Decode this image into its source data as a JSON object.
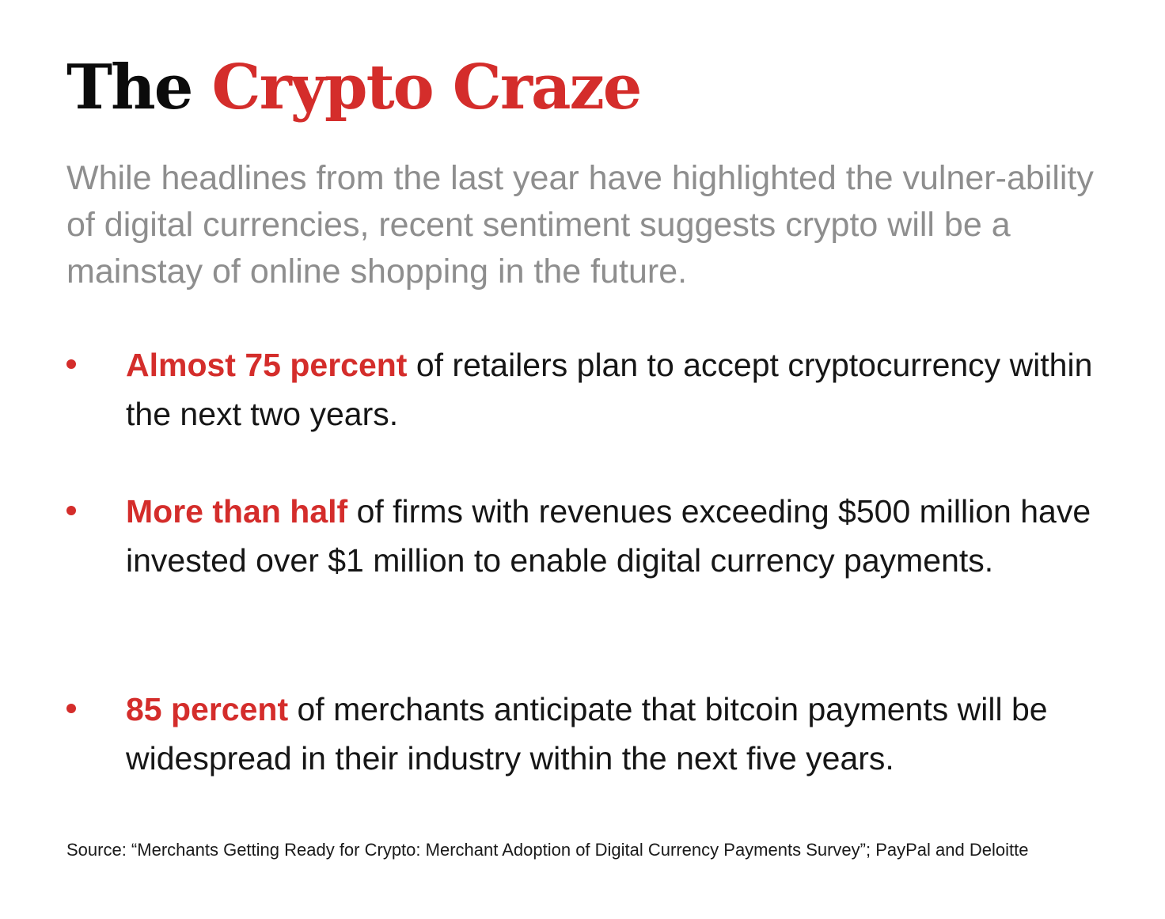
{
  "title": {
    "part1": "The",
    "part2": "Crypto Craze"
  },
  "intro": "While headlines from the last year have highlighted the vulner-ability of digital currencies, recent sentiment suggests crypto will be a mainstay of online shopping in the future.",
  "bullets": [
    {
      "highlight": "Almost 75 percent",
      "text": " of retailers plan to accept cryptocurrency within the next two years."
    },
    {
      "highlight": "More than half",
      "text": " of firms with revenues exceeding $500 million have invested over $1 million to enable digital currency payments."
    },
    {
      "highlight": "85 percent",
      "text": " of merchants anticipate that bitcoin payments will be widespread in their industry within the next five years."
    }
  ],
  "source": "Source: “Merchants Getting Ready for Crypto: Merchant Adoption of Digital Currency Payments Survey”; PayPal and Deloitte",
  "colors": {
    "accent": "#d42d2b",
    "title_black": "#0b0b0b",
    "intro_gray": "#8e8e8e",
    "body_text": "#161616"
  }
}
